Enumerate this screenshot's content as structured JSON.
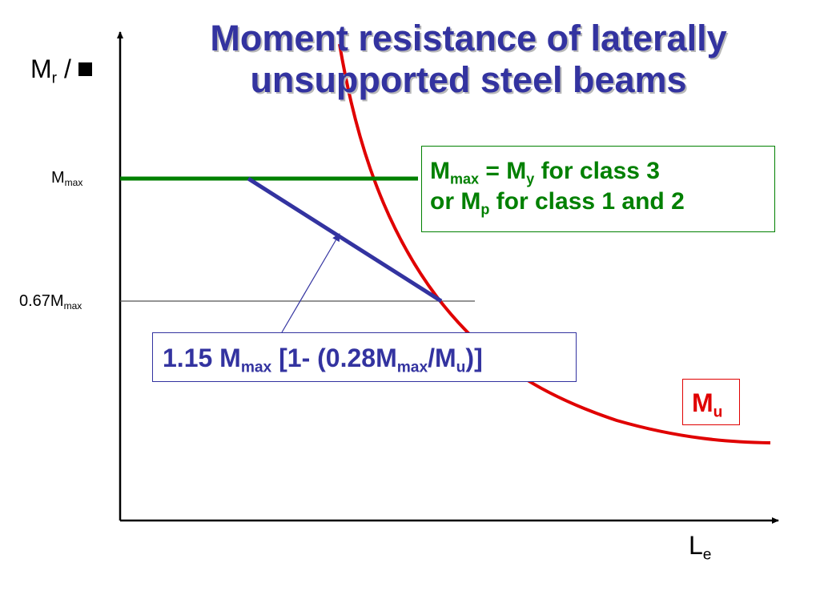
{
  "title": {
    "line1": "Moment resistance of laterally",
    "line2": "unsupported steel beams"
  },
  "y_axis": {
    "symbol": "M",
    "subscript": "r",
    "suffix": "/ ",
    "mark_icon": "black-square-icon"
  },
  "x_axis": {
    "symbol": "L",
    "subscript": "e"
  },
  "levels": {
    "mmax": {
      "symbol": "M",
      "subscript": "max"
    },
    "level_067": {
      "prefix": "0.67M",
      "subscript": "max"
    }
  },
  "callout_mmax": {
    "l1_a": "M",
    "l1_sub1": "max",
    "l1_b": " = M",
    "l1_sub2": "y",
    "l1_c": " for class 3",
    "l2_a": "or M",
    "l2_sub": "p",
    "l2_b": " for class 1 and 2"
  },
  "formula": {
    "p1": "1.15 M",
    "s1": "max",
    "p2": " [1- (0.28M",
    "s2": "max",
    "p3": "/M",
    "s3": "u",
    "p4": ")]"
  },
  "mu_label": {
    "symbol": "M",
    "subscript": "u"
  },
  "colors": {
    "title": "#3333a0",
    "green_line": "#008000",
    "blue_line": "#3333a0",
    "red_curve": "#e00000",
    "axis": "#000000"
  }
}
